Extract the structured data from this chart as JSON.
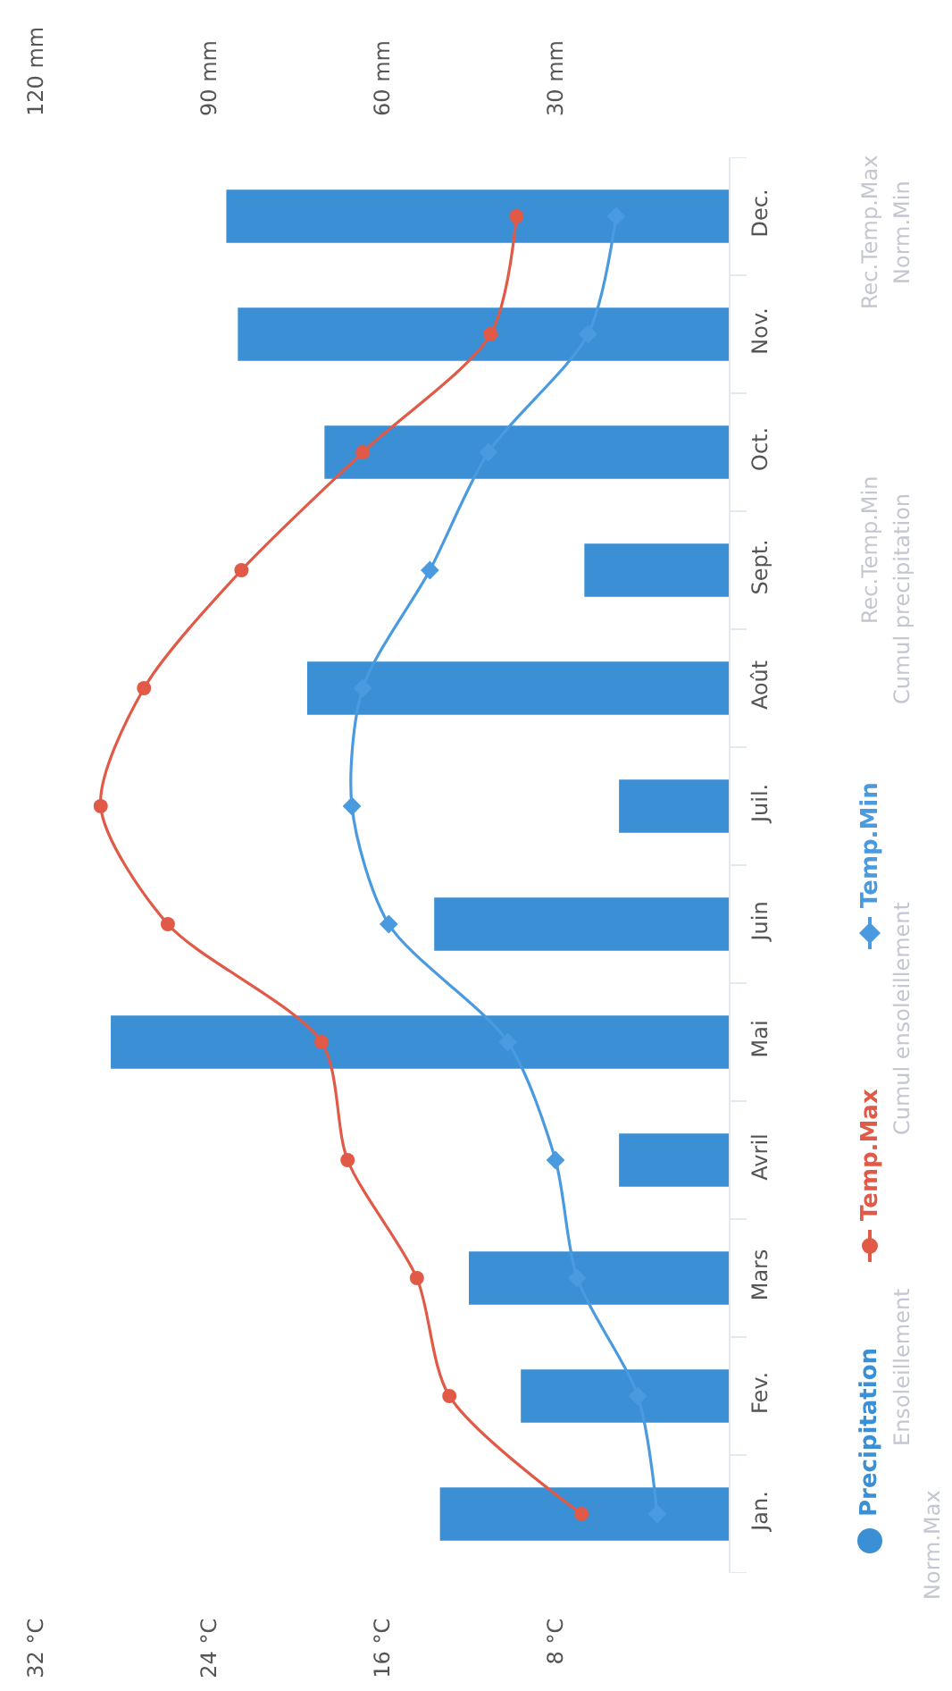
{
  "chart_data": {
    "type": "bar",
    "orientation": "horizontal",
    "categories": [
      "Dec.",
      "Nov.",
      "Oct.",
      "Sept.",
      "Août",
      "Juil.",
      "Juin",
      "Mai",
      "Avril",
      "Mars",
      "Fev.",
      "Jan."
    ],
    "series": [
      {
        "name": "Precipitation",
        "axis": "x2",
        "color": "#3b8fd4",
        "values": [
          87,
          85,
          70,
          25,
          73,
          19,
          51,
          107,
          19,
          45,
          36,
          50
        ]
      },
      {
        "name": "Temp.Max",
        "type": "line",
        "marker": "circle",
        "color": "#e05a47",
        "values": [
          9.8,
          11.0,
          16.9,
          22.5,
          27.0,
          29.0,
          25.9,
          18.8,
          17.6,
          14.4,
          12.9,
          6.8
        ]
      },
      {
        "name": "Temp.Min",
        "type": "line",
        "marker": "diamond",
        "color": "#4a9ae0",
        "values": [
          5.2,
          6.5,
          11.1,
          13.8,
          16.9,
          17.4,
          15.7,
          10.2,
          8.0,
          7.0,
          4.2,
          3.3
        ]
      }
    ],
    "xlim": [
      32,
      0
    ],
    "xticks": [
      {
        "value": 32,
        "label": "32 °C"
      },
      {
        "value": 24,
        "label": "24 °C"
      },
      {
        "value": 16,
        "label": "16 °C"
      },
      {
        "value": 8,
        "label": "8 °C"
      }
    ],
    "x2lim": [
      120,
      0
    ],
    "x2ticks": [
      {
        "value": 120,
        "label": "120 mm"
      },
      {
        "value": 90,
        "label": "90 mm"
      },
      {
        "value": 60,
        "label": "60 mm"
      },
      {
        "value": 30,
        "label": "30 mm"
      }
    ],
    "grid": false,
    "legend": "right",
    "annotations": [
      "Rec.Temp.Min",
      "Rec.Temp.Max",
      "Ensoleillement",
      "Cumul ensoleillement",
      "Cumul precipitation",
      "Norm.Min",
      "Norm.Max"
    ]
  }
}
